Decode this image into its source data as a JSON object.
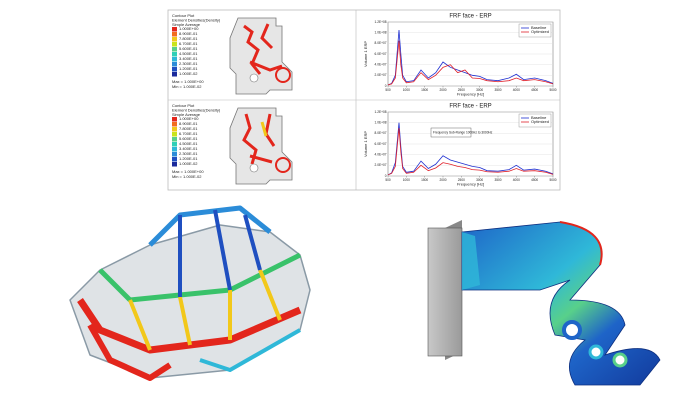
{
  "contour_plots": [
    {
      "title": "Contour Plot",
      "subtitle": "Element Densities(Density)",
      "method": "Simple Average",
      "levels": [
        "1.000E+00",
        "8.900E-01",
        "7.800E-01",
        "6.700E-01",
        "5.600E-01",
        "4.500E-01",
        "3.400E-01",
        "2.300E-01",
        "1.200E-01",
        "1.000E-02"
      ],
      "max": "Max = 1.000E+00",
      "min": "Min = 1.000E-02"
    },
    {
      "title": "Contour Plot",
      "subtitle": "Element Densities(Density)",
      "method": "Simple Average",
      "levels": [
        "1.000E+00",
        "8.900E-01",
        "7.800E-01",
        "6.700E-01",
        "5.600E-01",
        "4.500E-01",
        "3.400E-01",
        "2.300E-01",
        "1.200E-01",
        "1.000E-02"
      ],
      "max": "Max = 1.000E+00",
      "min": "Min = 1.000E-02"
    }
  ],
  "chart_data": [
    {
      "type": "line",
      "title": "FRF face - ERP",
      "x_label": "Frequency [Hz]",
      "y_label": "Volume 1 ERP",
      "x": [
        500,
        600,
        700,
        800,
        850,
        900,
        1000,
        1200,
        1400,
        1600,
        1800,
        2000,
        2200,
        2400,
        2600,
        2800,
        3000,
        3200,
        3500,
        3800,
        4000,
        4200,
        4500,
        4800,
        5000
      ],
      "series": [
        {
          "name": "Baseline",
          "color": "#1f2fd0",
          "values": [
            2000000,
            5000000,
            20000000,
            105000000,
            60000000,
            20000000,
            8000000,
            10000000,
            30000000,
            15000000,
            25000000,
            45000000,
            35000000,
            30000000,
            25000000,
            20000000,
            18000000,
            12000000,
            10000000,
            15000000,
            22000000,
            12000000,
            15000000,
            10000000,
            5000000
          ]
        },
        {
          "name": "Optimized",
          "color": "#e0202a",
          "values": [
            2000000,
            4000000,
            15000000,
            85000000,
            40000000,
            15000000,
            6000000,
            8000000,
            25000000,
            12000000,
            20000000,
            35000000,
            40000000,
            25000000,
            30000000,
            15000000,
            14000000,
            10000000,
            8000000,
            10000000,
            15000000,
            10000000,
            12000000,
            8000000,
            4000000
          ]
        }
      ],
      "xlim": [
        500,
        5000
      ],
      "xticks": [
        500,
        1000,
        1500,
        2000,
        2500,
        3000,
        3500,
        4000,
        4500,
        5000
      ],
      "ylim": [
        0,
        120000000
      ],
      "yticks": [
        0,
        {
          "value": 20000000,
          "label": "2.0E+07"
        },
        {
          "value": 40000000,
          "label": "4.0E+07"
        },
        {
          "value": 60000000,
          "label": "6.0E+07"
        },
        {
          "value": 80000000,
          "label": "8.0E+07"
        },
        {
          "value": 100000000,
          "label": "1.0E+08"
        },
        {
          "value": 120000000,
          "label": "1.2E+08"
        }
      ],
      "grid": true,
      "legend": "top-right"
    },
    {
      "type": "line",
      "title": "FRF face - ERP",
      "x_label": "Frequency [Hz]",
      "y_label": "Volume 1 ERP",
      "annotation": "Frequency Sub-Range 1000Hz to 3000Hz",
      "x": [
        500,
        600,
        700,
        800,
        850,
        900,
        1000,
        1200,
        1400,
        1600,
        1800,
        2000,
        2200,
        2400,
        2600,
        2800,
        3000,
        3200,
        3500,
        3800,
        4000,
        4200,
        4500,
        4800,
        5000
      ],
      "series": [
        {
          "name": "Baseline",
          "color": "#1f2fd0",
          "values": [
            2000000,
            6000000,
            25000000,
            100000000,
            55000000,
            18000000,
            7000000,
            9000000,
            28000000,
            14000000,
            22000000,
            38000000,
            30000000,
            26000000,
            22000000,
            18000000,
            16000000,
            10000000,
            9000000,
            12000000,
            20000000,
            11000000,
            13000000,
            9000000,
            4000000
          ]
        },
        {
          "name": "Optimized",
          "color": "#e0202a",
          "values": [
            2000000,
            5000000,
            18000000,
            90000000,
            45000000,
            14000000,
            5000000,
            7000000,
            20000000,
            10000000,
            15000000,
            25000000,
            22000000,
            18000000,
            16000000,
            12000000,
            11000000,
            8000000,
            7000000,
            9000000,
            14000000,
            9000000,
            10000000,
            7000000,
            3000000
          ]
        }
      ],
      "xlim": [
        500,
        5000
      ],
      "xticks": [
        500,
        1000,
        1500,
        2000,
        2500,
        3000,
        3500,
        4000,
        4500,
        5000
      ],
      "ylim": [
        0,
        120000000
      ],
      "yticks": [
        0,
        {
          "value": 20000000,
          "label": "2.0E+07"
        },
        {
          "value": 40000000,
          "label": "4.0E+07"
        },
        {
          "value": 60000000,
          "label": "6.0E+07"
        },
        {
          "value": 80000000,
          "label": "8.0E+07"
        },
        {
          "value": 100000000,
          "label": "1.0E+08"
        },
        {
          "value": 120000000,
          "label": "1.2E+08"
        }
      ],
      "grid": true,
      "legend": "top-right"
    }
  ]
}
